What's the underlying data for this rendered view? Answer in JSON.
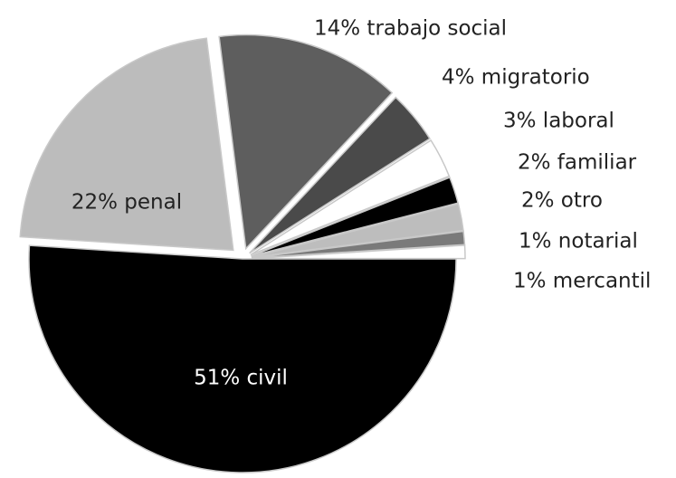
{
  "chart_data": {
    "type": "pie",
    "title": "",
    "legend": "none",
    "slices": [
      {
        "label": "civil",
        "value": 51,
        "text": "51% civil",
        "color": "#000000",
        "label_placement": "inside",
        "label_color": "#ffffff"
      },
      {
        "label": "penal",
        "value": 22,
        "text": "22% penal",
        "color": "#bcbcbc",
        "label_placement": "inside",
        "label_color": "#222222"
      },
      {
        "label": "trabajo social",
        "value": 14,
        "text": "14% trabajo social",
        "color": "#5e5e5e",
        "label_placement": "outside",
        "label_color": "#222222"
      },
      {
        "label": "migratorio",
        "value": 4,
        "text": "4% migratorio",
        "color": "#4a4a4a",
        "label_placement": "outside",
        "label_color": "#222222"
      },
      {
        "label": "laboral",
        "value": 3,
        "text": "3% laboral",
        "color": "#ffffff",
        "label_placement": "outside",
        "label_color": "#222222"
      },
      {
        "label": "familiar",
        "value": 2,
        "text": "2% familiar",
        "color": "#000000",
        "label_placement": "outside",
        "label_color": "#222222"
      },
      {
        "label": "otro",
        "value": 2,
        "text": "2% otro",
        "color": "#bdbdbd",
        "label_placement": "outside",
        "label_color": "#222222"
      },
      {
        "label": "notarial",
        "value": 1,
        "text": "1% notarial",
        "color": "#7a7a7a",
        "label_placement": "outside",
        "label_color": "#222222"
      },
      {
        "label": "mercantil",
        "value": 1,
        "text": "1% mercantil",
        "color": "#ffffff",
        "label_placement": "outside",
        "label_color": "#222222"
      }
    ]
  }
}
